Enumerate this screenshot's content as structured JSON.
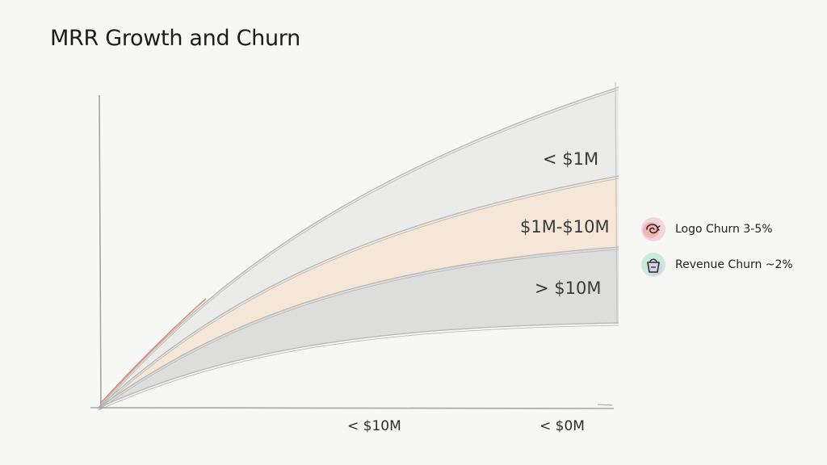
{
  "title": "MRR Growth and Churn",
  "chart_data": {
    "type": "area",
    "title": "MRR Growth and Churn",
    "xlabel": "",
    "ylabel": "",
    "x_tick_labels": [
      "< $10M",
      "< $0M"
    ],
    "bands": [
      {
        "name": "< $1M",
        "color": "#e9e9e9"
      },
      {
        "name": "$1M-$10M",
        "color": "#f3e4d4"
      },
      {
        "name": "> $10M",
        "color": "#d9d9d9"
      }
    ],
    "grid": false
  },
  "legend": [
    {
      "label": "Logo Churn 3-5%",
      "icon": "swirl-churn-icon",
      "color": "#e8796b"
    },
    {
      "label": "Revenue Churn ~2%",
      "icon": "bag-churn-icon",
      "color": "#5bbf9f"
    }
  ],
  "colors": {
    "accent": "#e07a5f",
    "axis": "#9a9a9a"
  }
}
